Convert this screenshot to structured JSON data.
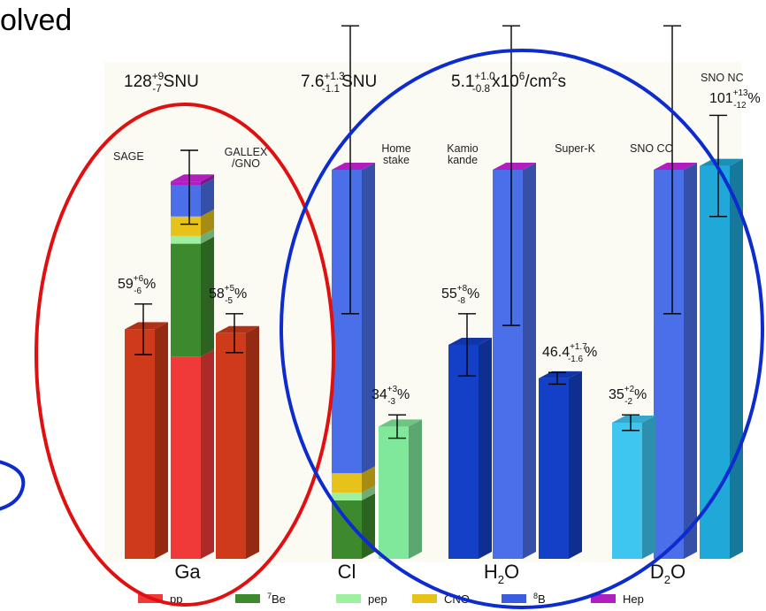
{
  "header_fragment": "olved",
  "chart_data": {
    "type": "bar",
    "stack_components": [
      {
        "name": "pp",
        "color": "#f03a3a"
      },
      {
        "name": "7Be",
        "color": "#3d8a2e"
      },
      {
        "name": "pep",
        "color": "#9cf0a0"
      },
      {
        "name": "CNO",
        "color": "#e6c21a"
      },
      {
        "name": "8B",
        "color": "#4a6fe8"
      },
      {
        "name": "Hep",
        "color": "#b01ec0"
      }
    ],
    "legend": [
      {
        "sup": "",
        "label": "pp",
        "color": "#f03a3a"
      },
      {
        "sup": "7",
        "label": "Be",
        "color": "#3d8a2e"
      },
      {
        "sup": "",
        "label": "pep",
        "color": "#9cf0a0"
      },
      {
        "sup": "",
        "label": "CNO",
        "color": "#e6c21a"
      },
      {
        "sup": "8",
        "label": "B",
        "color": "#3b5be0"
      },
      {
        "sup": "",
        "label": "Hep",
        "color": "#b01ec0"
      }
    ],
    "legend_placement": "bottom",
    "groups": [
      {
        "label": "Ga",
        "label_sub": "",
        "prediction": {
          "value": "128",
          "sup": "+9",
          "sub": "-7",
          "unit": "SNU"
        },
        "theory_stack": [
          0.52,
          0.29,
          0.02,
          0.05,
          0.08,
          0.01
        ],
        "theory_error": [
          0.08,
          0.11
        ],
        "measurements": [
          {
            "name": "SAGE",
            "name2": "",
            "ratio": 0.59,
            "err": 0.065,
            "label": "59",
            "sup": "+6",
            "sub": "-6",
            "unit": "%",
            "color": "#cf3a1a"
          },
          {
            "name": "GALLEX",
            "name2": "/GNO",
            "ratio": 0.58,
            "err": 0.05,
            "label": "58",
            "sup": "+5",
            "sub": "-5",
            "unit": "%",
            "color": "#cf3a1a"
          }
        ]
      },
      {
        "label": "Cl",
        "label_sub": "",
        "prediction": {
          "value": "7.6",
          "sup": "+1.3",
          "sub": "-1.1",
          "unit": "SNU"
        },
        "theory_stack": [
          0.0,
          0.15,
          0.02,
          0.05,
          0.78,
          0.0
        ],
        "theory_error": [
          0.37,
          0.37
        ],
        "measurements": [
          {
            "name": "Home",
            "name2": "stake",
            "ratio": 0.34,
            "err": 0.03,
            "label": "34",
            "sup": "+3",
            "sub": "-3",
            "unit": "%",
            "color": "#7fe89a"
          }
        ]
      },
      {
        "label": "H",
        "label_sub": "2",
        "label_tail": "O",
        "prediction": {
          "value": "5.1",
          "sup": "+1.0",
          "sub": "-0.8",
          "unit": "x10",
          "unit_sup": "6",
          "unit_tail": "/cm",
          "unit_sup2": "2",
          "unit_end": "s"
        },
        "theory_stack": [
          0,
          0,
          0,
          0,
          1.0,
          0.0
        ],
        "theory_error": [
          0.37,
          0.4
        ],
        "measurements": [
          {
            "name": "Kamio",
            "name2": "kande",
            "ratio": 0.55,
            "err": 0.08,
            "label": "55",
            "sup": "+8",
            "sub": "-8",
            "unit": "%",
            "color": "#1440c8"
          },
          {
            "name": "Super-K",
            "name2": "",
            "ratio": 0.464,
            "err": 0.015,
            "label": "46.4",
            "sup": "+1.7",
            "sub": "-1.6",
            "unit": "%",
            "color": "#1440c8"
          }
        ]
      },
      {
        "label": "D",
        "label_sub": "2",
        "label_tail": "O",
        "prediction": {
          "value": "",
          "sup": "",
          "sub": "",
          "unit": ""
        },
        "theory_stack": [
          0,
          0,
          0,
          0,
          1.0,
          0.0
        ],
        "theory_error": [
          0.37,
          0.37
        ],
        "measurements": [
          {
            "name": "SNO CC",
            "name2": "",
            "ratio": 0.35,
            "err": 0.02,
            "label": "35",
            "sup": "+2",
            "sub": "-2",
            "unit": "%",
            "color": "#3ec6f0"
          },
          {
            "name": "SNO NC",
            "name2": "",
            "ratio": 1.01,
            "err": 0.13,
            "label": "101",
            "sup": "+13",
            "sub": "-12",
            "unit": "%",
            "color": "#1fa8d8"
          }
        ]
      }
    ],
    "annotations": [
      {
        "shape": "ellipse",
        "color": "#e01010",
        "note": "Ga group"
      },
      {
        "shape": "ellipse",
        "color": "#0c2ccf",
        "note": "Cl, H2O, D2O groups"
      },
      {
        "shape": "partial-ellipse",
        "color": "#0c2ccf",
        "note": "left edge"
      }
    ]
  }
}
